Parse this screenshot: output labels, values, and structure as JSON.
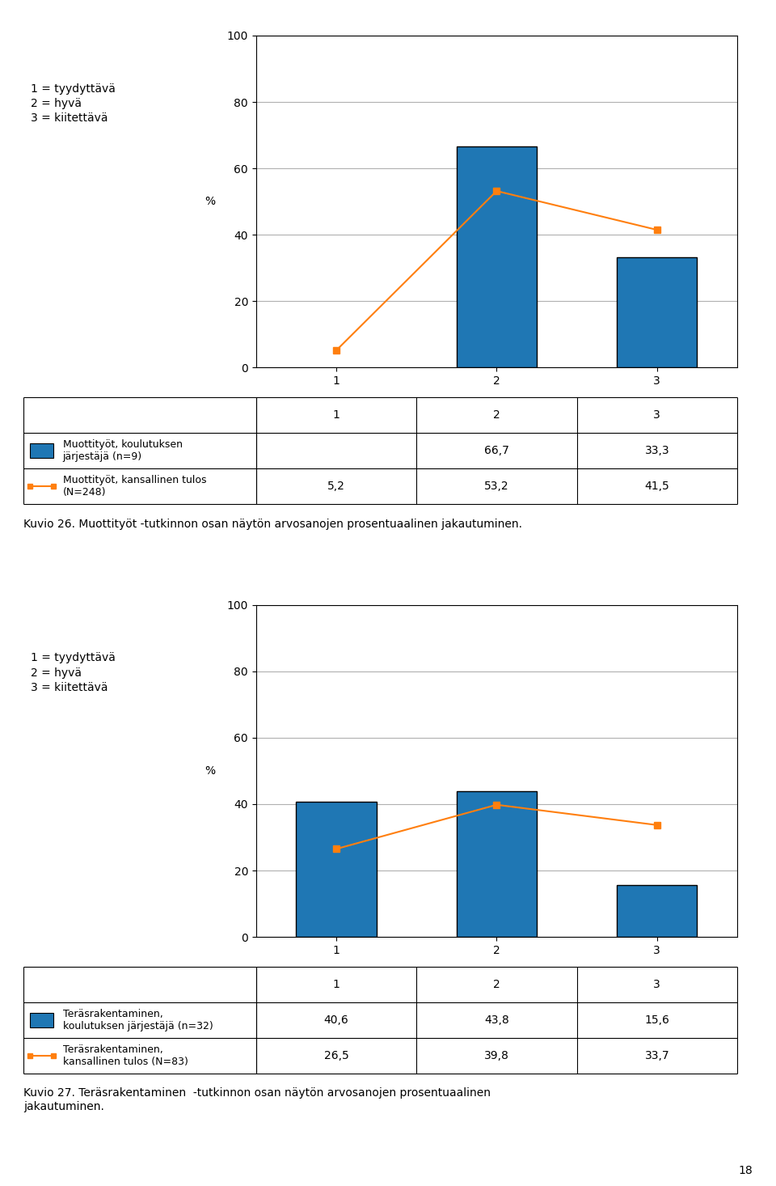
{
  "chart_data": [
    {
      "type": "bar",
      "caption": "Kuvio 26. Muottityöt -tutkinnon osan näytön arvosanojen prosentuaalinen jakautuminen.",
      "annotations": [
        "1 = tyydyttävä\n2 = hyvä\n3 = kiitettävä"
      ],
      "y_label": "%",
      "categories": [
        "1",
        "2",
        "3"
      ],
      "series": [
        {
          "name": "Muottityöt, koulutuksen\njärjestäjä (n=9)",
          "type": "bar",
          "values": [
            null,
            66.7,
            33.3
          ],
          "value_labels": [
            null,
            "66,7",
            "33,3"
          ]
        },
        {
          "name": "Muottityöt, kansallinen tulos\n(N=248)",
          "type": "line",
          "marker": "square",
          "values": [
            5.2,
            53.2,
            41.5
          ],
          "value_labels": [
            "5,2",
            "53,2",
            "41,5"
          ]
        }
      ],
      "ylim": [
        0,
        100
      ],
      "yticks": [
        0,
        20,
        40,
        60,
        80,
        100
      ],
      "grid": true,
      "data_labels": true
    },
    {
      "type": "bar",
      "caption": "Kuvio 27. Teräsrakentaminen  -tutkinnon osan näytön arvosanojen prosentuaalinen\njakautuminen.",
      "annotations": [
        "1 = tyydyttävä\n2 = hyvä\n3 = kiitettävä"
      ],
      "y_label": "%",
      "categories": [
        "1",
        "2",
        "3"
      ],
      "series": [
        {
          "name": "Teräsrakentaminen,\nkoulutuksen järjestäjä (n=32)",
          "type": "bar",
          "values": [
            40.6,
            43.8,
            15.6
          ],
          "value_labels": [
            "40,6",
            "43,8",
            "15,6"
          ]
        },
        {
          "name": "Teräsrakentaminen,\nkansallinen tulos (N=83)",
          "type": "line",
          "marker": "square",
          "values": [
            26.5,
            39.8,
            33.7
          ],
          "value_labels": [
            "26,5",
            "39,8",
            "33,7"
          ]
        }
      ],
      "ylim": [
        0,
        100
      ],
      "yticks": [
        0,
        20,
        40,
        60,
        80,
        100
      ],
      "grid": true,
      "data_labels": true
    }
  ],
  "page_number": "18"
}
